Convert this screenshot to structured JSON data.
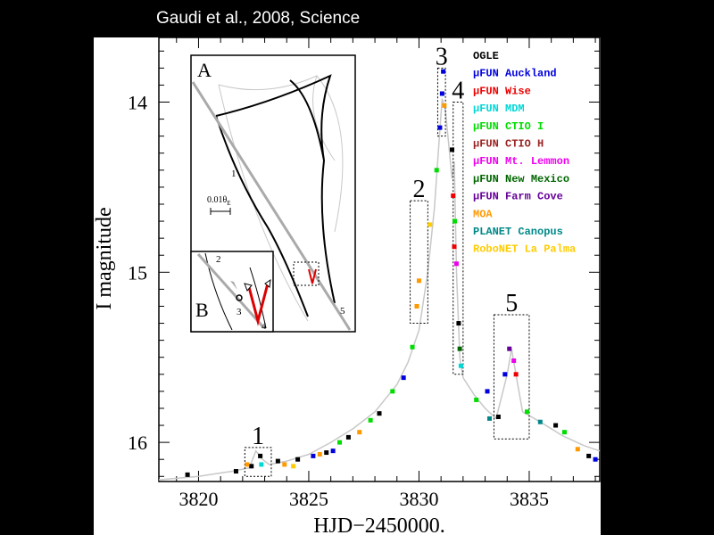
{
  "caption": "Gaudi et al., 2008, Science",
  "chart_data": {
    "type": "scatter",
    "title": "",
    "xlabel": "HJD−2450000.",
    "ylabel": "I magnitude",
    "xlim": [
      3818.2,
      3838.2
    ],
    "ylim": [
      16.23,
      13.62
    ],
    "y_inverted": true,
    "x_ticks": [
      "3820",
      "3825",
      "3830",
      "3835"
    ],
    "x_tick_values": [
      3820,
      3825,
      3830,
      3835
    ],
    "y_ticks": [
      "14",
      "15",
      "16"
    ],
    "y_tick_values": [
      14,
      15,
      16
    ],
    "legend": [
      {
        "mu": "",
        "name": "OGLE",
        "color": "#000000"
      },
      {
        "mu": "μ",
        "name": "FUN Auckland",
        "color": "#0000dd"
      },
      {
        "mu": "μ",
        "name": "FUN Wise",
        "color": "#ee0000"
      },
      {
        "mu": "μ",
        "name": "FUN MDM",
        "color": "#00d8d8"
      },
      {
        "mu": "μ",
        "name": "FUN CTIO I",
        "color": "#00dd00"
      },
      {
        "mu": "μ",
        "name": "FUN CTIO H",
        "color": "#992222"
      },
      {
        "mu": "μ",
        "name": "FUN Mt. Lemmon",
        "color": "#ee00ee"
      },
      {
        "mu": "μ",
        "name": "FUN New Mexico",
        "color": "#006600"
      },
      {
        "mu": "μ",
        "name": "FUN Farm Cove",
        "color": "#660099"
      },
      {
        "mu": "",
        "name": "MOA",
        "color": "#ff9900"
      },
      {
        "mu": "",
        "name": "PLANET Canopus",
        "color": "#008888"
      },
      {
        "mu": "",
        "name": "RoboNET La Palma",
        "color": "#ffcc00"
      }
    ],
    "model_curve": [
      [
        3818.2,
        16.22
      ],
      [
        3820.0,
        16.2
      ],
      [
        3821.5,
        16.17
      ],
      [
        3822.3,
        16.15
      ],
      [
        3822.6,
        16.05
      ],
      [
        3822.9,
        16.1
      ],
      [
        3823.2,
        16.13
      ],
      [
        3824.0,
        16.11
      ],
      [
        3825.0,
        16.07
      ],
      [
        3826.0,
        16.0
      ],
      [
        3827.0,
        15.92
      ],
      [
        3828.0,
        15.82
      ],
      [
        3829.0,
        15.66
      ],
      [
        3829.5,
        15.53
      ],
      [
        3830.0,
        15.34
      ],
      [
        3830.4,
        15.0
      ],
      [
        3830.7,
        14.62
      ],
      [
        3830.9,
        14.25
      ],
      [
        3831.05,
        13.98
      ],
      [
        3831.2,
        14.05
      ],
      [
        3831.5,
        14.45
      ],
      [
        3831.6,
        14.35
      ],
      [
        3831.7,
        15.0
      ],
      [
        3831.85,
        15.5
      ],
      [
        3832.0,
        15.62
      ],
      [
        3832.5,
        15.72
      ],
      [
        3833.0,
        15.8
      ],
      [
        3833.5,
        15.86
      ],
      [
        3834.0,
        15.6
      ],
      [
        3834.2,
        15.45
      ],
      [
        3834.4,
        15.6
      ],
      [
        3834.7,
        15.82
      ],
      [
        3835.5,
        15.88
      ],
      [
        3836.5,
        15.96
      ],
      [
        3837.5,
        16.02
      ],
      [
        3838.2,
        16.05
      ]
    ],
    "points": [
      {
        "s": 0,
        "x": 3819.5,
        "y": 16.19
      },
      {
        "s": 0,
        "x": 3821.7,
        "y": 16.17
      },
      {
        "s": 0,
        "x": 3822.4,
        "y": 16.14
      },
      {
        "s": 0,
        "x": 3822.8,
        "y": 16.08
      },
      {
        "s": 3,
        "x": 3822.85,
        "y": 16.13
      },
      {
        "s": 9,
        "x": 3822.2,
        "y": 16.13
      },
      {
        "s": 0,
        "x": 3823.6,
        "y": 16.11
      },
      {
        "s": 9,
        "x": 3823.9,
        "y": 16.13
      },
      {
        "s": 11,
        "x": 3824.3,
        "y": 16.14
      },
      {
        "s": 0,
        "x": 3824.5,
        "y": 16.1
      },
      {
        "s": 1,
        "x": 3825.2,
        "y": 16.08
      },
      {
        "s": 9,
        "x": 3825.5,
        "y": 16.07
      },
      {
        "s": 0,
        "x": 3825.8,
        "y": 16.06
      },
      {
        "s": 1,
        "x": 3826.1,
        "y": 16.05
      },
      {
        "s": 4,
        "x": 3826.4,
        "y": 16.0
      },
      {
        "s": 0,
        "x": 3826.8,
        "y": 15.97
      },
      {
        "s": 9,
        "x": 3827.3,
        "y": 15.94
      },
      {
        "s": 4,
        "x": 3827.8,
        "y": 15.87
      },
      {
        "s": 0,
        "x": 3828.2,
        "y": 15.83
      },
      {
        "s": 4,
        "x": 3828.8,
        "y": 15.7
      },
      {
        "s": 1,
        "x": 3829.3,
        "y": 15.62
      },
      {
        "s": 4,
        "x": 3829.7,
        "y": 15.44
      },
      {
        "s": 9,
        "x": 3829.9,
        "y": 15.2
      },
      {
        "s": 9,
        "x": 3830.0,
        "y": 15.05
      },
      {
        "s": 11,
        "x": 3830.5,
        "y": 14.72
      },
      {
        "s": 4,
        "x": 3830.8,
        "y": 14.4
      },
      {
        "s": 1,
        "x": 3830.95,
        "y": 14.15
      },
      {
        "s": 1,
        "x": 3831.05,
        "y": 13.95
      },
      {
        "s": 1,
        "x": 3831.1,
        "y": 13.82
      },
      {
        "s": 9,
        "x": 3831.15,
        "y": 14.02
      },
      {
        "s": 0,
        "x": 3831.5,
        "y": 14.28
      },
      {
        "s": 2,
        "x": 3831.55,
        "y": 14.55
      },
      {
        "s": 2,
        "x": 3831.6,
        "y": 14.85
      },
      {
        "s": 4,
        "x": 3831.62,
        "y": 14.7
      },
      {
        "s": 6,
        "x": 3831.7,
        "y": 14.95
      },
      {
        "s": 0,
        "x": 3831.8,
        "y": 15.3
      },
      {
        "s": 7,
        "x": 3831.85,
        "y": 15.45
      },
      {
        "s": 3,
        "x": 3831.9,
        "y": 15.55
      },
      {
        "s": 4,
        "x": 3832.6,
        "y": 15.75
      },
      {
        "s": 1,
        "x": 3833.1,
        "y": 15.7
      },
      {
        "s": 10,
        "x": 3833.2,
        "y": 15.86
      },
      {
        "s": 0,
        "x": 3833.6,
        "y": 15.85
      },
      {
        "s": 1,
        "x": 3833.9,
        "y": 15.6
      },
      {
        "s": 8,
        "x": 3834.1,
        "y": 15.45
      },
      {
        "s": 6,
        "x": 3834.3,
        "y": 15.52
      },
      {
        "s": 2,
        "x": 3834.4,
        "y": 15.6
      },
      {
        "s": 4,
        "x": 3834.9,
        "y": 15.82
      },
      {
        "s": 10,
        "x": 3835.5,
        "y": 15.88
      },
      {
        "s": 0,
        "x": 3836.2,
        "y": 15.9
      },
      {
        "s": 4,
        "x": 3836.6,
        "y": 15.94
      },
      {
        "s": 9,
        "x": 3837.2,
        "y": 16.04
      },
      {
        "s": 0,
        "x": 3837.7,
        "y": 16.08
      },
      {
        "s": 1,
        "x": 3838.0,
        "y": 16.1
      }
    ],
    "regions": [
      {
        "label": "1",
        "x1": 3822.1,
        "x2": 3823.3,
        "y1": 16.03,
        "y2": 16.2
      },
      {
        "label": "2",
        "x1": 3829.6,
        "x2": 3830.4,
        "y1": 14.58,
        "y2": 15.3
      },
      {
        "label": "3",
        "x1": 3830.85,
        "x2": 3831.2,
        "y1": 13.8,
        "y2": 14.2
      },
      {
        "label": "4",
        "x1": 3831.55,
        "x2": 3832.0,
        "y1": 14.0,
        "y2": 15.6
      },
      {
        "label": "5",
        "x1": 3833.4,
        "x2": 3835.0,
        "y1": 15.25,
        "y2": 15.98
      }
    ],
    "inset_a": {
      "label": "A",
      "label_1": "1",
      "label_5": "5",
      "scale_text": "0.01θ",
      "scale_sub": "E"
    },
    "inset_b": {
      "label": "B",
      "label_2": "2",
      "label_3": "3",
      "label_4": "4"
    }
  }
}
